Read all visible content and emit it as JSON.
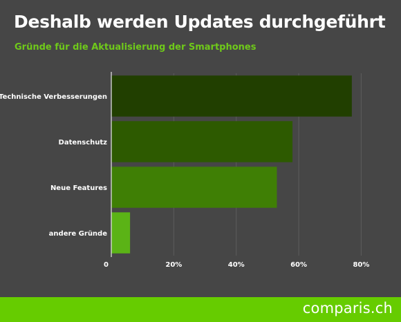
{
  "header": {
    "title": "Deshalb werden Updates durchgeführt",
    "subtitle": "Gründe für die Aktualisierung der Smartphones"
  },
  "chart_data": {
    "type": "bar",
    "orientation": "horizontal",
    "title": "Deshalb werden Updates durchgeführt",
    "subtitle": "Gründe für die Aktualisierung der Smartphones",
    "categories": [
      "Technische Verbesserungen",
      "Datenschutz",
      "Neue Features",
      "andere Gründe"
    ],
    "values": [
      77,
      58,
      53,
      6
    ],
    "bar_colors": [
      "#213f00",
      "#2d5a00",
      "#3f7f05",
      "#5bb316"
    ],
    "xlim": [
      0,
      85
    ],
    "xticks": [
      0,
      20,
      40,
      60,
      80
    ],
    "xtick_labels": [
      "0",
      "20%",
      "40%",
      "60%",
      "80%"
    ],
    "grid": true,
    "xlabel": "",
    "ylabel": ""
  },
  "footer": {
    "logo_text": "comparis.ch",
    "color": "#66cc00"
  },
  "colors": {
    "background": "#464646",
    "accent": "#6fc91a",
    "grid": "#5c5c5c"
  }
}
